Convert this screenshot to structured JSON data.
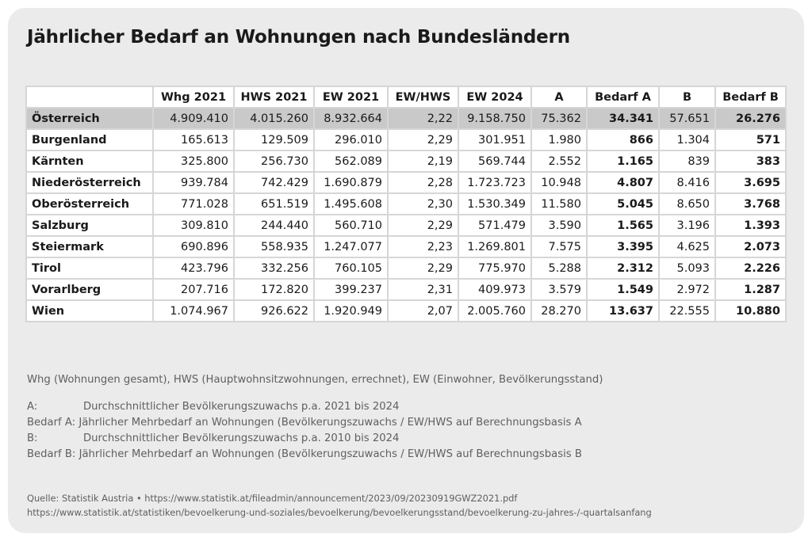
{
  "title": "Jährlicher Bedarf an Wohnungen nach Bundesländern",
  "table": {
    "columns": [
      "",
      "Whg 2021",
      "HWS 2021",
      "EW 2021",
      "EW/HWS",
      "EW 2024",
      "A",
      "Bedarf A",
      "B",
      "Bedarf B"
    ],
    "rows": [
      [
        "Österreich",
        "4.909.410",
        "4.015.260",
        "8.932.664",
        "2,22",
        "9.158.750",
        "75.362",
        "34.341",
        "57.651",
        "26.276"
      ],
      [
        "Burgenland",
        "165.613",
        "129.509",
        "296.010",
        "2,29",
        "301.951",
        "1.980",
        "866",
        "1.304",
        "571"
      ],
      [
        "Kärnten",
        "325.800",
        "256.730",
        "562.089",
        "2,19",
        "569.744",
        "2.552",
        "1.165",
        "839",
        "383"
      ],
      [
        "Niederösterreich",
        "939.784",
        "742.429",
        "1.690.879",
        "2,28",
        "1.723.723",
        "10.948",
        "4.807",
        "8.416",
        "3.695"
      ],
      [
        "Oberösterreich",
        "771.028",
        "651.519",
        "1.495.608",
        "2,30",
        "1.530.349",
        "11.580",
        "5.045",
        "8.650",
        "3.768"
      ],
      [
        "Salzburg",
        "309.810",
        "244.440",
        "560.710",
        "2,29",
        "571.479",
        "3.590",
        "1.565",
        "3.196",
        "1.393"
      ],
      [
        "Steiermark",
        "690.896",
        "558.935",
        "1.247.077",
        "2,23",
        "1.269.801",
        "7.575",
        "3.395",
        "4.625",
        "2.073"
      ],
      [
        "Tirol",
        "423.796",
        "332.256",
        "760.105",
        "2,29",
        "775.970",
        "5.288",
        "2.312",
        "5.093",
        "2.226"
      ],
      [
        "Vorarlberg",
        "207.716",
        "172.820",
        "399.237",
        "2,31",
        "409.973",
        "3.579",
        "1.549",
        "2.972",
        "1.287"
      ],
      [
        "Wien",
        "1.074.967",
        "926.622",
        "1.920.949",
        "2,07",
        "2.005.760",
        "28.270",
        "13.637",
        "22.555",
        "10.880"
      ]
    ]
  },
  "abbreviations": "Whg (Wohnungen gesamt), HWS (Hauptwohnsitzwohnungen, errechnet), EW (Einwohner, Bevölkerungsstand)",
  "definitions": [
    {
      "key": "A:",
      "text": "Durchschnittlicher Bevölkerungszuwachs p.a. 2021 bis 2024"
    },
    {
      "key": "Bedarf A:",
      "text": "Jährlicher Mehrbedarf an Wohnungen (Bevölkerungszuwachs / EW/HWS auf Berechnungsbasis A"
    },
    {
      "key": "B:",
      "text": "Durchschnittlicher Bevölkerungszuwachs p.a. 2010 bis 2024"
    },
    {
      "key": "Bedarf B:",
      "text": "Jährlicher Mehrbedarf an Wohnungen (Bevölkerungszuwachs / EW/HWS auf Berechnungsbasis B"
    }
  ],
  "source": {
    "line1": "Quelle: Statistik Austria • https://www.statistik.at/fileadmin/announcement/2023/09/20230919GWZ2021.pdf",
    "line2": "https://www.statistik.at/statistiken/bevoelkerung-und-soziales/bevoelkerung/bevoelkerungsstand/bevoelkerung-zu-jahres-/-quartalsanfang"
  }
}
